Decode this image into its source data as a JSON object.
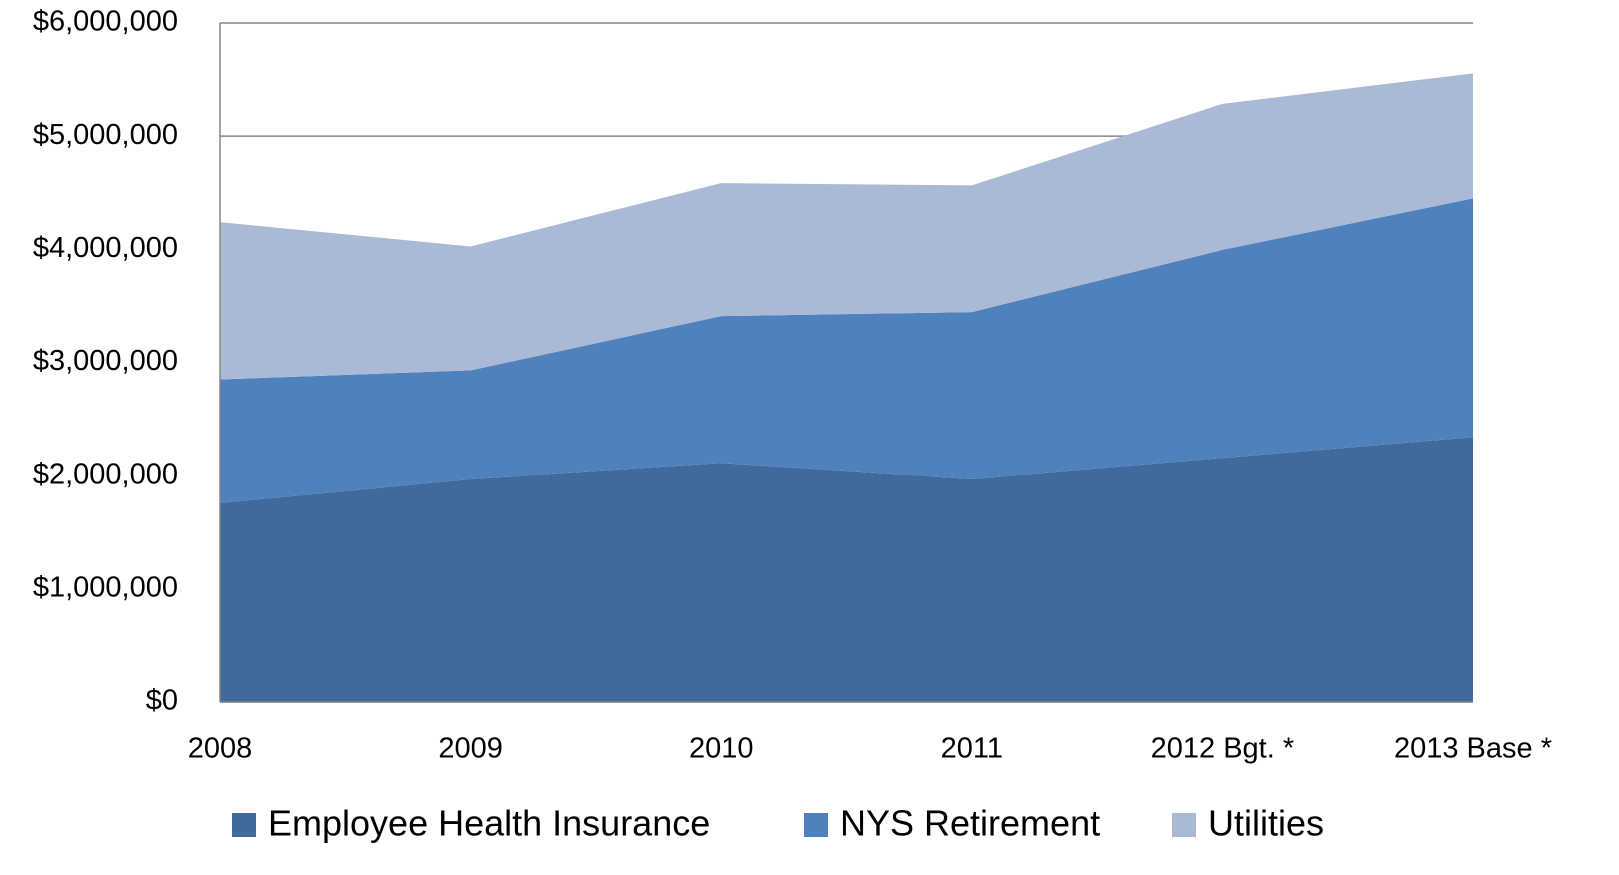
{
  "chart_data": {
    "type": "stacked-area",
    "categories": [
      "2008",
      "2009",
      "2010",
      "2011",
      "2012 Bgt. *",
      "2013 Base *"
    ],
    "series": [
      {
        "name": "Employee Health Insurance",
        "color": "#416a9c",
        "values": [
          1760000,
          1970000,
          2110000,
          1970000,
          2155000,
          2340000
        ]
      },
      {
        "name": "NYS Retirement",
        "color": "#4f81bd",
        "values": [
          1090000,
          960000,
          1300000,
          1475000,
          1840000,
          2110000
        ]
      },
      {
        "name": "Utilities",
        "color": "#aab9d6",
        "values": [
          1390000,
          1095000,
          1175000,
          1120000,
          1290000,
          1105000
        ]
      }
    ],
    "ylim": [
      0,
      6000000
    ],
    "yticks": [
      {
        "value": 0,
        "label": "$0"
      },
      {
        "value": 1000000,
        "label": "$1,000,000"
      },
      {
        "value": 2000000,
        "label": "$2,000,000"
      },
      {
        "value": 3000000,
        "label": "$3,000,000"
      },
      {
        "value": 4000000,
        "label": "$4,000,000"
      },
      {
        "value": 5000000,
        "label": "$5,000,000"
      },
      {
        "value": 6000000,
        "label": "$6,000,000"
      }
    ],
    "grid": true,
    "legend": "bottom"
  }
}
